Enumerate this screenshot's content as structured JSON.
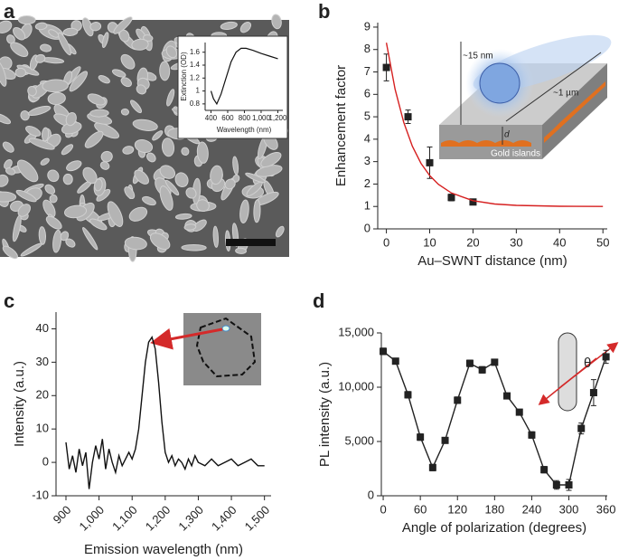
{
  "chart_data": [
    {
      "panel": "a",
      "type": "line",
      "xlabel": "Wavelength (nm)",
      "ylabel": "Extinction (OD)",
      "xlim": [
        330,
        1260
      ],
      "xticks": [
        400,
        600,
        800,
        {
          "value": 1000,
          "label": "1,000"
        },
        {
          "value": 1200,
          "label": "1,200"
        }
      ],
      "ylim": [
        0.7,
        1.75
      ],
      "yticks": [
        0.8,
        1.0,
        1.2,
        1.4,
        1.6
      ],
      "series": [
        {
          "color": "#111",
          "x": [
            400,
            430,
            470,
            520,
            580,
            640,
            700,
            760,
            820,
            900,
            1000,
            1100,
            1200
          ],
          "values": [
            1.0,
            0.88,
            0.8,
            0.95,
            1.2,
            1.45,
            1.6,
            1.66,
            1.66,
            1.63,
            1.58,
            1.54,
            1.5
          ]
        }
      ]
    },
    {
      "panel": "b",
      "type": "scatter",
      "xlabel": "Au–SWNT distance (nm)",
      "ylabel": "Enhancement factor",
      "xlim": [
        -2,
        51
      ],
      "xticks": [
        0,
        10,
        20,
        30,
        40,
        50
      ],
      "ylim": [
        0,
        9.2
      ],
      "yticks": [
        0,
        1,
        2,
        3,
        4,
        5,
        6,
        7,
        8,
        9
      ],
      "annotations": [
        "~15 nm",
        "~1 µm",
        "d",
        "Gold islands"
      ],
      "series": [
        {
          "color": "#222",
          "marker": "square",
          "x": [
            0,
            5,
            10,
            15,
            20
          ],
          "values": [
            7.2,
            5.0,
            2.95,
            1.4,
            1.2
          ],
          "errors": [
            0.6,
            0.3,
            0.7,
            0.15,
            0.1
          ]
        },
        {
          "color": "#d62020",
          "marker": "none",
          "x": [
            0,
            2,
            4,
            6,
            8,
            10,
            12,
            15,
            20,
            25,
            30,
            40,
            50
          ],
          "values": [
            8.3,
            6.23,
            4.75,
            3.69,
            2.92,
            2.38,
            1.99,
            1.6,
            1.26,
            1.11,
            1.05,
            1.01,
            1.0
          ]
        }
      ]
    },
    {
      "panel": "c",
      "type": "line",
      "xlabel": "Emission wavelength (nm)",
      "ylabel": "Intensity (a.u.)",
      "xlim": [
        870,
        1520
      ],
      "xticks": [
        900,
        {
          "value": 1000,
          "label": "1,000"
        },
        {
          "value": 1100,
          "label": "1,100"
        },
        {
          "value": 1200,
          "label": "1,200"
        },
        {
          "value": 1300,
          "label": "1,300"
        },
        {
          "value": 1400,
          "label": "1,400"
        },
        {
          "value": 1500,
          "label": "1,500"
        }
      ],
      "ylim": [
        -10,
        45
      ],
      "yticks": [
        -10,
        0,
        10,
        20,
        30,
        40
      ],
      "series": [
        {
          "color": "#111",
          "x": [
            900,
            910,
            920,
            930,
            940,
            950,
            960,
            970,
            980,
            990,
            1000,
            1010,
            1020,
            1030,
            1040,
            1050,
            1060,
            1070,
            1080,
            1090,
            1100,
            1110,
            1120,
            1130,
            1140,
            1150,
            1160,
            1170,
            1180,
            1190,
            1200,
            1210,
            1220,
            1230,
            1240,
            1250,
            1260,
            1270,
            1280,
            1290,
            1300,
            1320,
            1340,
            1360,
            1380,
            1400,
            1420,
            1440,
            1460,
            1480,
            1500
          ],
          "values": [
            6,
            -2,
            2,
            -3,
            4,
            -1,
            3,
            -8,
            0,
            5,
            1,
            7,
            -2,
            4,
            0,
            -3,
            2,
            -1,
            1,
            3,
            1,
            4,
            10,
            20,
            30,
            36,
            37.5,
            34,
            24,
            12,
            3,
            0,
            2,
            -1,
            1,
            0,
            -2,
            1,
            -1,
            2,
            0,
            -1,
            1,
            -1,
            0,
            1,
            -1,
            0,
            1,
            -1,
            -1
          ]
        }
      ]
    },
    {
      "panel": "d",
      "type": "line",
      "xlabel": "Angle of polarization (degrees)",
      "ylabel": "PL intensity (a.u.)",
      "xlim": [
        -3,
        362
      ],
      "xticks": [
        0,
        60,
        120,
        180,
        240,
        300,
        360
      ],
      "ylim": [
        0,
        15000
      ],
      "yticks": [
        0,
        {
          "value": 5000,
          "label": "5,000"
        },
        {
          "value": 10000,
          "label": "10,000"
        },
        {
          "value": 15000,
          "label": "15,000"
        }
      ],
      "annotations": [
        "θ"
      ],
      "series": [
        {
          "color": "#222",
          "marker": "square",
          "x": [
            0,
            20,
            40,
            60,
            80,
            100,
            120,
            140,
            160,
            180,
            200,
            220,
            240,
            260,
            280,
            300,
            320,
            340,
            360
          ],
          "values": [
            13300,
            12400,
            9300,
            5400,
            2600,
            5100,
            8800,
            12200,
            11600,
            12300,
            9200,
            7700,
            5600,
            2400,
            1000,
            1000,
            6200,
            9500,
            12800
          ],
          "errors": [
            300,
            200,
            300,
            300,
            300,
            200,
            300,
            300,
            300,
            200,
            200,
            200,
            300,
            300,
            400,
            500,
            500,
            1200,
            600
          ]
        }
      ]
    }
  ]
}
